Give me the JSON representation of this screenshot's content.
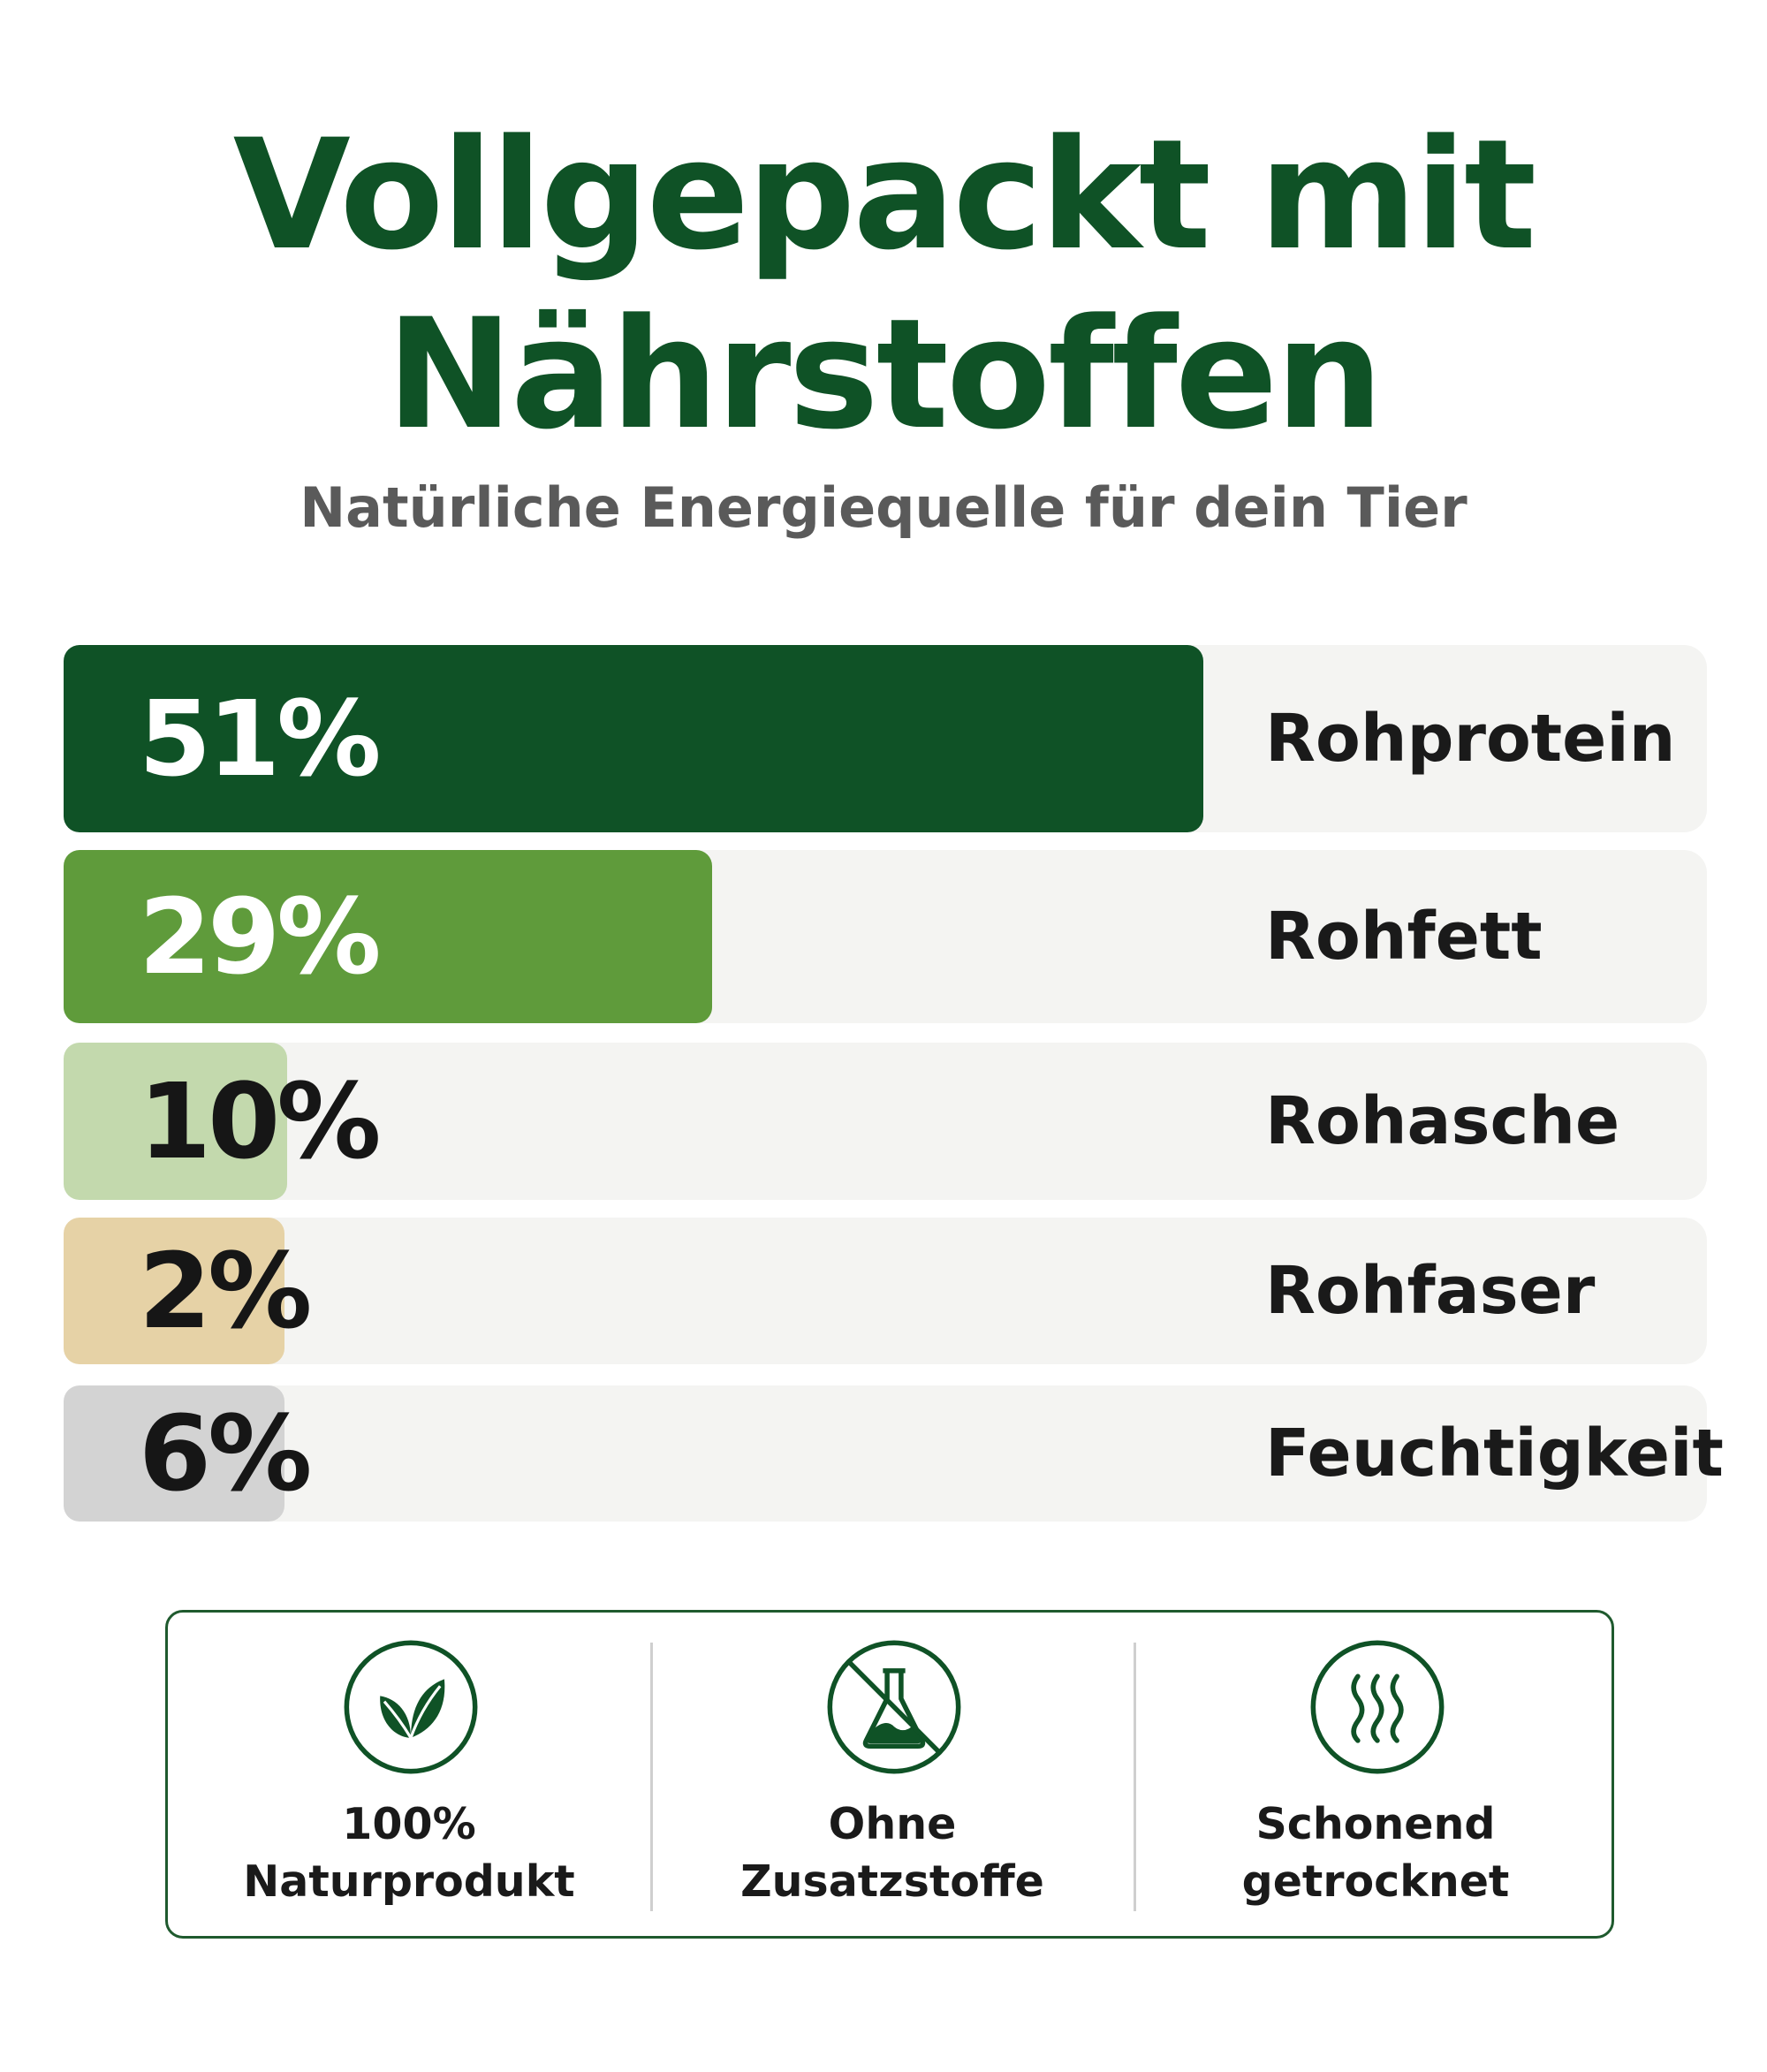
{
  "title_line1": "Vollgepackt mit",
  "title_line2": "Nährstoffen",
  "subtitle": "Natürliche Energiequelle für dein Tier",
  "chart_data": {
    "type": "bar",
    "orientation": "horizontal",
    "categories": [
      "Rohprotein",
      "Rohfett",
      "Rohasche",
      "Rohfaser",
      "Feuchtigkeit"
    ],
    "values": [
      51,
      29,
      10,
      2,
      6
    ],
    "value_labels": [
      "51%",
      "29%",
      "10%",
      "2%",
      "6%"
    ],
    "bar_colors": [
      "#0f5226",
      "#5f9b3b",
      "#c3d9ad",
      "#e6d2a6",
      "#d3d3d3"
    ],
    "label_colors": [
      "#ffffff",
      "#ffffff",
      "#161616",
      "#161616",
      "#161616"
    ],
    "track_color": "#f4f4f2"
  },
  "features": [
    {
      "icon": "leaf-icon",
      "line1": "100%",
      "line2": "Naturprodukt"
    },
    {
      "icon": "no-chemicals-icon",
      "line1": "Ohne",
      "line2": "Zusatzstoffe"
    },
    {
      "icon": "steam-icon",
      "line1": "Schonend",
      "line2": "getrocknet"
    }
  ],
  "colors": {
    "brand_green": "#0f5226",
    "subtitle_gray": "#5a5a5a",
    "border_green": "#1f5a2e"
  }
}
